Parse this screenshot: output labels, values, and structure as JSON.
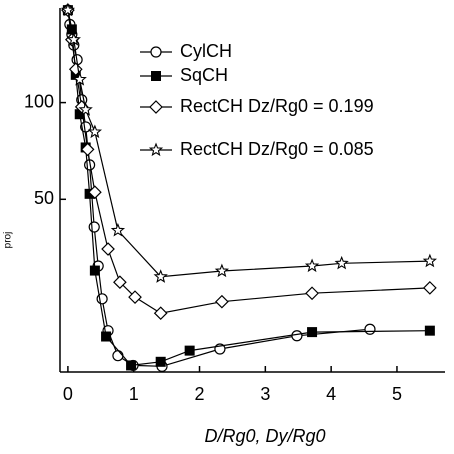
{
  "chart_data": {
    "type": "line",
    "x_label": "D/Rg0, Dy/Rg0",
    "y_label": "proj",
    "xlim": [
      -0.12,
      5.73
    ],
    "xticks": [
      0,
      1,
      2,
      3,
      4,
      5
    ],
    "ylim": [
      14.5,
      197
    ],
    "yticks": [
      50,
      100
    ],
    "log_y": true,
    "legend": "top-right",
    "series": [
      {
        "name": "CylCH",
        "color": "#000000",
        "marker": "circle",
        "x": [
          0,
          0.03,
          0.06,
          0.09,
          0.14,
          0.21,
          0.27,
          0.33,
          0.4,
          0.46,
          0.52,
          0.61,
          0.76,
          0.99,
          1.43,
          2.31,
          3.48,
          4.59
        ],
        "values": [
          194,
          175,
          163,
          151,
          136,
          102,
          84,
          64,
          41,
          31,
          24.5,
          19.5,
          16.3,
          15.2,
          15.1,
          17.1,
          18.8,
          19.7
        ]
      },
      {
        "name": "SqCH",
        "color": "#000000",
        "marker": "square",
        "x": [
          0,
          0.06,
          0.12,
          0.18,
          0.27,
          0.33,
          0.41,
          0.58,
          0.96,
          1.41,
          1.85,
          3.71,
          5.5
        ],
        "values": [
          194,
          169,
          122,
          92,
          72.5,
          52,
          30,
          18.7,
          15.2,
          15.6,
          16.9,
          19.3,
          19.5
        ]
      },
      {
        "name": "RectCH Dz/Rg0 = 0.199",
        "color": "#000000",
        "marker": "diamond",
        "x": [
          0,
          0.06,
          0.12,
          0.21,
          0.3,
          0.41,
          0.61,
          0.79,
          1.02,
          1.41,
          2.34,
          3.71,
          5.5
        ],
        "values": [
          194,
          157,
          127,
          97,
          71.5,
          52.6,
          35,
          27.6,
          24.8,
          22.1,
          24,
          25.5,
          26.5
        ]
      },
      {
        "name": "RectCH Dz/Rg0 = 0.085",
        "color": "#000000",
        "marker": "star",
        "x": [
          0,
          0.09,
          0.18,
          0.27,
          0.41,
          0.76,
          1.41,
          2.34,
          3.71,
          4.16,
          5.5
        ],
        "values": [
          194,
          157,
          118,
          95,
          81,
          40,
          28.7,
          29.9,
          31,
          31.6,
          32.1
        ]
      }
    ]
  }
}
